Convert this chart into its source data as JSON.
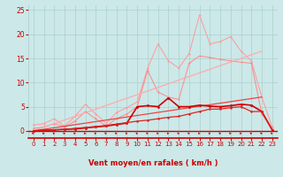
{
  "xlabel": "Vent moyen/en rafales ( km/h )",
  "xlim": [
    -0.5,
    23.5
  ],
  "ylim": [
    -1.5,
    26
  ],
  "ylim_plot": [
    0,
    26
  ],
  "xticks": [
    0,
    1,
    2,
    3,
    4,
    5,
    6,
    7,
    8,
    9,
    10,
    11,
    12,
    13,
    14,
    15,
    16,
    17,
    18,
    19,
    20,
    21,
    22,
    23
  ],
  "yticks": [
    0,
    5,
    10,
    15,
    20,
    25
  ],
  "bg_color": "#cce8e8",
  "grid_color": "#aacccc",
  "series": [
    {
      "name": "lightest_pink_spiky",
      "color": "#ff9999",
      "linewidth": 0.7,
      "marker": "o",
      "markersize": 1.5,
      "x": [
        0,
        1,
        2,
        3,
        4,
        5,
        6,
        7,
        8,
        9,
        10,
        11,
        12,
        13,
        14,
        15,
        16,
        17,
        18,
        19,
        20,
        21,
        22,
        23
      ],
      "y": [
        1.2,
        1.5,
        2.5,
        1.0,
        3.0,
        5.5,
        3.5,
        1.5,
        3.8,
        4.8,
        6.0,
        13.0,
        18.0,
        14.5,
        13.0,
        16.0,
        24.0,
        18.0,
        18.5,
        19.5,
        16.5,
        14.5,
        7.0,
        0.8
      ]
    },
    {
      "name": "pink_medium_spiky",
      "color": "#ff8888",
      "linewidth": 0.7,
      "marker": "o",
      "markersize": 1.5,
      "x": [
        0,
        1,
        2,
        3,
        4,
        5,
        6,
        7,
        8,
        9,
        10,
        11,
        12,
        13,
        14,
        15,
        16,
        17,
        18,
        19,
        20,
        21,
        22,
        23
      ],
      "y": [
        0.5,
        0.8,
        1.5,
        0.8,
        2.0,
        4.0,
        2.5,
        1.0,
        2.5,
        3.5,
        5.0,
        12.5,
        8.0,
        7.0,
        6.5,
        14.0,
        15.5,
        15.2,
        14.8,
        14.5,
        14.2,
        14.0,
        3.5,
        0.5
      ]
    },
    {
      "name": "light_pink_straight",
      "color": "#ffaaaa",
      "linewidth": 0.9,
      "marker": null,
      "x": [
        0,
        22
      ],
      "y": [
        0.0,
        16.5
      ]
    },
    {
      "name": "red_straight",
      "color": "#ee4444",
      "linewidth": 0.9,
      "marker": null,
      "x": [
        0,
        22
      ],
      "y": [
        0.0,
        7.0
      ]
    },
    {
      "name": "dark_red_markers",
      "color": "#cc0000",
      "linewidth": 1.2,
      "marker": "o",
      "markersize": 2.0,
      "x": [
        0,
        1,
        2,
        3,
        4,
        5,
        6,
        7,
        8,
        9,
        10,
        11,
        12,
        13,
        14,
        15,
        16,
        17,
        18,
        19,
        20,
        21,
        22,
        23
      ],
      "y": [
        0.0,
        0.1,
        0.2,
        0.3,
        0.4,
        0.6,
        0.8,
        1.0,
        1.3,
        1.6,
        5.0,
        5.2,
        5.0,
        6.8,
        5.0,
        5.0,
        5.3,
        5.1,
        5.0,
        5.2,
        5.5,
        5.3,
        4.0,
        0.2
      ]
    },
    {
      "name": "red_medium_markers",
      "color": "#dd2222",
      "linewidth": 0.9,
      "marker": "o",
      "markersize": 1.8,
      "x": [
        0,
        1,
        2,
        3,
        4,
        5,
        6,
        7,
        8,
        9,
        10,
        11,
        12,
        13,
        14,
        15,
        16,
        17,
        18,
        19,
        20,
        21,
        22,
        23
      ],
      "y": [
        0.0,
        0.1,
        0.2,
        0.3,
        0.5,
        0.7,
        0.9,
        1.1,
        1.4,
        1.7,
        2.0,
        2.2,
        2.5,
        2.8,
        3.0,
        3.5,
        4.0,
        4.5,
        4.5,
        4.8,
        5.0,
        4.0,
        4.0,
        0.2
      ]
    }
  ],
  "arrow_color": "#cc0000",
  "axis_color": "#cc0000",
  "tick_color": "#cc0000",
  "xlabel_color": "#cc0000",
  "xlabel_fontsize": 6.0,
  "tick_fontsize_x": 5.0,
  "tick_fontsize_y": 5.5
}
